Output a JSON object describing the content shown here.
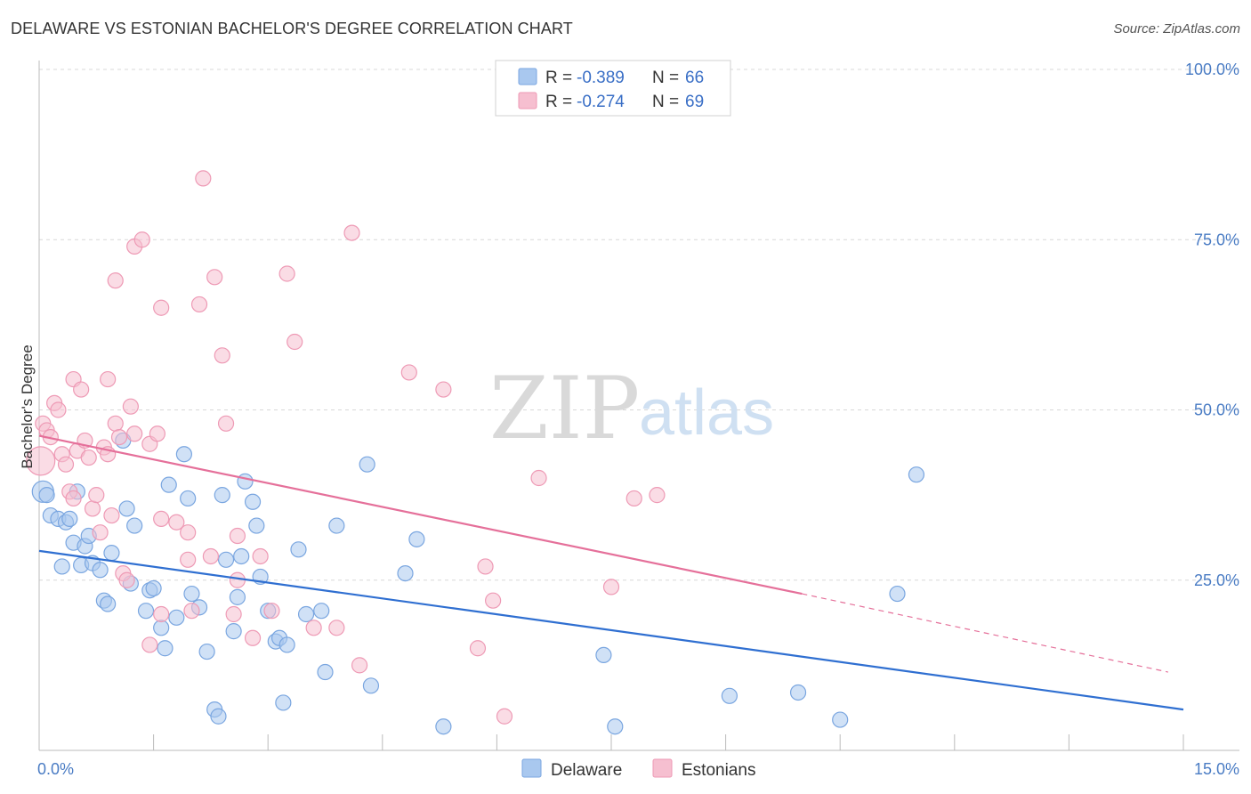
{
  "title": "DELAWARE VS ESTONIAN BACHELOR'S DEGREE CORRELATION CHART",
  "source": "Source: ZipAtlas.com",
  "watermark": {
    "zip": "ZIP",
    "atlas": "atlas"
  },
  "legend": {
    "r_label": "R =",
    "n_label": "N =",
    "delaware": {
      "r": "-0.389",
      "n": "66"
    },
    "estonians": {
      "r": "-0.274",
      "n": "69"
    }
  },
  "colors": {
    "delaware_fill": "#a9c8ef",
    "delaware_stroke": "#7aa6e0",
    "delaware_line": "#2f6fd1",
    "estonians_fill": "#f6bfd0",
    "estonians_stroke": "#ee9ab5",
    "estonians_line": "#e5709a",
    "grid": "#d8d8d8",
    "tick_text": "#4a7cc4"
  },
  "chart_data": {
    "type": "scatter",
    "title": "DELAWARE VS ESTONIAN BACHELOR'S DEGREE CORRELATION CHART",
    "xlabel": "",
    "ylabel": "Bachelor's Degree",
    "xlim": [
      0,
      15
    ],
    "ylim": [
      0,
      100
    ],
    "x_tick_labels": [
      "0.0%",
      "15.0%"
    ],
    "y_ticks": [
      25,
      50,
      75,
      100
    ],
    "y_tick_labels": [
      "25.0%",
      "50.0%",
      "75.0%",
      "100.0%"
    ],
    "grid": true,
    "legend_position": "top-center",
    "series": [
      {
        "name": "Delaware",
        "r": -0.389,
        "n": 66,
        "trend": {
          "x0": 0,
          "y0": 29.3,
          "x1": 15,
          "y1": 6.0
        },
        "points": [
          [
            0.05,
            38.0
          ],
          [
            0.1,
            37.5
          ],
          [
            0.15,
            34.5
          ],
          [
            0.25,
            34.0
          ],
          [
            0.35,
            33.5
          ],
          [
            0.4,
            34.0
          ],
          [
            0.45,
            30.5
          ],
          [
            0.3,
            27.0
          ],
          [
            0.55,
            27.2
          ],
          [
            0.6,
            30.0
          ],
          [
            0.65,
            31.5
          ],
          [
            0.7,
            27.5
          ],
          [
            0.8,
            26.5
          ],
          [
            0.85,
            22.0
          ],
          [
            0.9,
            21.5
          ],
          [
            0.95,
            29.0
          ],
          [
            0.5,
            38.0
          ],
          [
            1.15,
            35.5
          ],
          [
            1.2,
            24.5
          ],
          [
            1.25,
            33.0
          ],
          [
            1.1,
            45.5
          ],
          [
            1.4,
            20.5
          ],
          [
            1.45,
            23.5
          ],
          [
            1.5,
            23.8
          ],
          [
            1.6,
            18.0
          ],
          [
            1.65,
            15.0
          ],
          [
            1.7,
            39.0
          ],
          [
            1.8,
            19.5
          ],
          [
            1.9,
            43.5
          ],
          [
            1.95,
            37.0
          ],
          [
            2.0,
            23.0
          ],
          [
            2.1,
            21.0
          ],
          [
            2.2,
            14.5
          ],
          [
            2.3,
            6.0
          ],
          [
            2.35,
            5.0
          ],
          [
            2.4,
            37.5
          ],
          [
            2.45,
            28.0
          ],
          [
            2.55,
            17.5
          ],
          [
            2.6,
            22.5
          ],
          [
            2.65,
            28.5
          ],
          [
            2.7,
            39.5
          ],
          [
            2.8,
            36.5
          ],
          [
            2.85,
            33.0
          ],
          [
            2.9,
            25.5
          ],
          [
            3.0,
            20.5
          ],
          [
            3.1,
            16.0
          ],
          [
            3.15,
            16.5
          ],
          [
            3.25,
            15.5
          ],
          [
            3.2,
            7.0
          ],
          [
            3.4,
            29.5
          ],
          [
            3.5,
            20.0
          ],
          [
            3.7,
            20.5
          ],
          [
            3.75,
            11.5
          ],
          [
            3.9,
            33.0
          ],
          [
            4.3,
            42.0
          ],
          [
            4.35,
            9.5
          ],
          [
            4.8,
            26.0
          ],
          [
            4.95,
            31.0
          ],
          [
            5.3,
            3.5
          ],
          [
            7.4,
            14.0
          ],
          [
            7.55,
            3.5
          ],
          [
            9.05,
            8.0
          ],
          [
            9.95,
            8.5
          ],
          [
            10.5,
            4.5
          ],
          [
            11.25,
            23.0
          ],
          [
            11.5,
            40.5
          ]
        ]
      },
      {
        "name": "Estonians",
        "r": -0.274,
        "n": 69,
        "trend": {
          "x0": 0,
          "y0": 46.2,
          "x1": 10.0,
          "y1": 23.0
        },
        "trend_dashed_to": {
          "x": 14.8,
          "y": 11.5
        },
        "points": [
          [
            0.02,
            42.5
          ],
          [
            0.05,
            48.0
          ],
          [
            0.1,
            47.0
          ],
          [
            0.15,
            46.0
          ],
          [
            0.2,
            51.0
          ],
          [
            0.25,
            50.0
          ],
          [
            0.3,
            43.5
          ],
          [
            0.35,
            42.0
          ],
          [
            0.4,
            38.0
          ],
          [
            0.45,
            37.0
          ],
          [
            0.45,
            54.5
          ],
          [
            0.5,
            44.0
          ],
          [
            0.55,
            53.0
          ],
          [
            0.6,
            45.5
          ],
          [
            0.65,
            43.0
          ],
          [
            0.7,
            35.5
          ],
          [
            0.75,
            37.5
          ],
          [
            0.8,
            32.0
          ],
          [
            0.85,
            44.5
          ],
          [
            0.9,
            43.5
          ],
          [
            0.95,
            34.5
          ],
          [
            0.9,
            54.5
          ],
          [
            1.0,
            48.0
          ],
          [
            1.05,
            46.0
          ],
          [
            1.0,
            69.0
          ],
          [
            1.1,
            26.0
          ],
          [
            1.15,
            25.0
          ],
          [
            1.2,
            50.5
          ],
          [
            1.25,
            46.5
          ],
          [
            1.25,
            74.0
          ],
          [
            1.35,
            75.0
          ],
          [
            1.45,
            45.0
          ],
          [
            1.45,
            15.5
          ],
          [
            1.55,
            46.5
          ],
          [
            1.6,
            34.0
          ],
          [
            1.6,
            20.0
          ],
          [
            1.6,
            65.0
          ],
          [
            1.8,
            33.5
          ],
          [
            1.95,
            28.0
          ],
          [
            1.95,
            32.0
          ],
          [
            2.0,
            20.5
          ],
          [
            2.1,
            65.5
          ],
          [
            2.15,
            84.0
          ],
          [
            2.25,
            28.5
          ],
          [
            2.3,
            69.5
          ],
          [
            2.4,
            58.0
          ],
          [
            2.45,
            48.0
          ],
          [
            2.55,
            20.0
          ],
          [
            2.6,
            25.0
          ],
          [
            2.6,
            31.5
          ],
          [
            2.8,
            16.5
          ],
          [
            2.9,
            28.5
          ],
          [
            3.05,
            20.5
          ],
          [
            3.25,
            70.0
          ],
          [
            3.35,
            60.0
          ],
          [
            3.6,
            18.0
          ],
          [
            3.9,
            18.0
          ],
          [
            4.1,
            76.0
          ],
          [
            4.2,
            12.5
          ],
          [
            4.85,
            55.5
          ],
          [
            5.3,
            53.0
          ],
          [
            5.75,
            15.0
          ],
          [
            5.85,
            27.0
          ],
          [
            5.95,
            22.0
          ],
          [
            6.1,
            5.0
          ],
          [
            6.55,
            40.0
          ],
          [
            7.5,
            24.0
          ],
          [
            7.8,
            37.0
          ],
          [
            8.1,
            37.5
          ]
        ]
      }
    ]
  },
  "bottom_legend": {
    "delaware": "Delaware",
    "estonians": "Estonians"
  }
}
